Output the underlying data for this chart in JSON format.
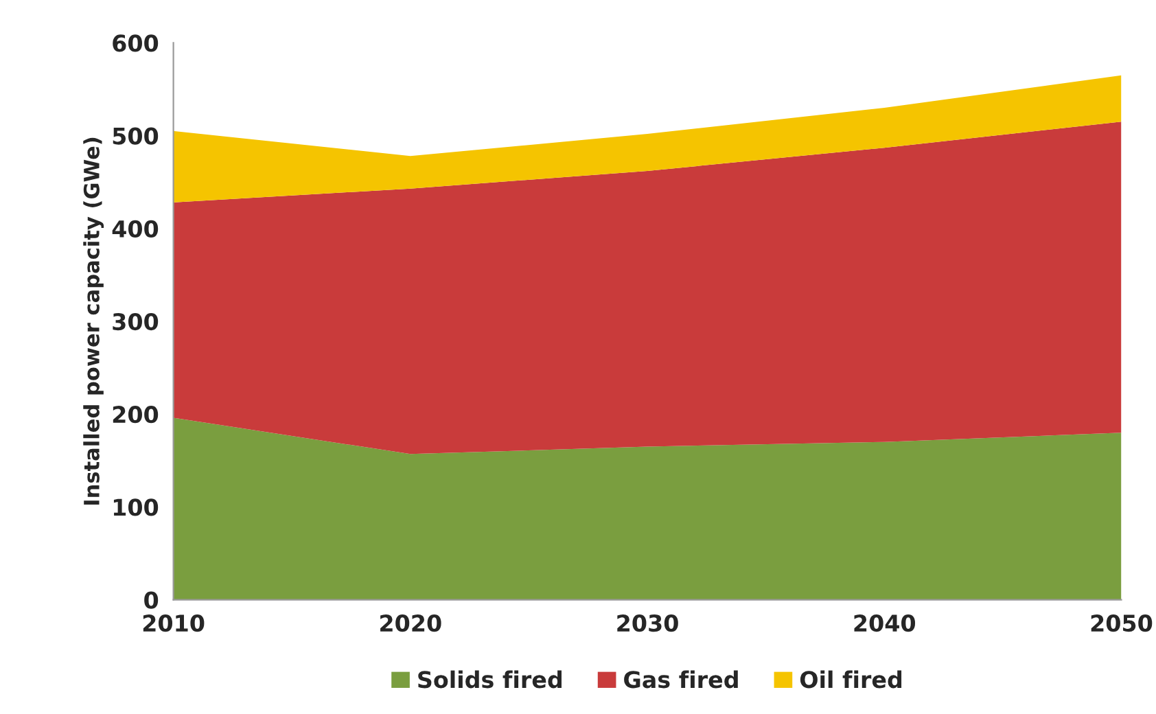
{
  "chart_data": {
    "type": "area",
    "stacked": true,
    "ylabel": "Installed power capacity (GWe)",
    "x": [
      2010,
      2020,
      2030,
      2040,
      2050
    ],
    "series": [
      {
        "name": "Solids fired",
        "color": "#7a9e3f",
        "values": [
          196,
          157,
          165,
          170,
          180
        ]
      },
      {
        "name": "Gas fired",
        "color": "#c93b3b",
        "values": [
          232,
          286,
          297,
          317,
          335
        ]
      },
      {
        "name": "Oil fired",
        "color": "#f5c400",
        "values": [
          77,
          35,
          40,
          43,
          50
        ]
      }
    ],
    "xlim": [
      2010,
      2050
    ],
    "xticks": [
      2010,
      2020,
      2030,
      2040,
      2050
    ],
    "ylim": [
      0,
      600
    ],
    "yticks": [
      0,
      100,
      200,
      300,
      400,
      500,
      600
    ],
    "grid": false,
    "legend": "bottom"
  }
}
